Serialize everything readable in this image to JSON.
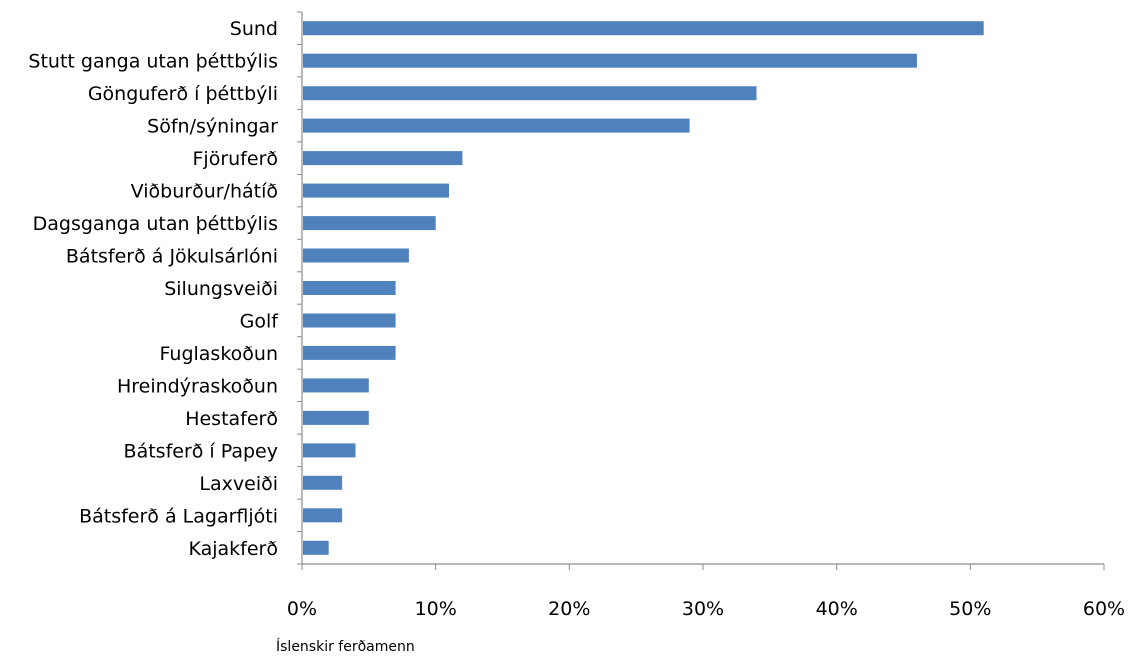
{
  "chart_data": {
    "type": "bar",
    "orientation": "horizontal",
    "categories": [
      "Sund",
      "Stutt ganga utan þéttbýlis",
      "Gönguferð í þéttbýli",
      "Söfn/sýningar",
      "Fjöruferð",
      "Viðburður/hátíð",
      "Dagsganga utan þéttbýlis",
      "Bátsferð á Jökulsárlóni",
      "Silungsveiði",
      "Golf",
      "Fuglaskoðun",
      "Hreindýraskoðun",
      "Hestaferð",
      "Bátsferð í Papey",
      "Laxveiði",
      "Bátsferð á Lagarfljóti",
      "Kajakferð"
    ],
    "series": [
      {
        "values": [
          51,
          46,
          34,
          29,
          12,
          11,
          10,
          8,
          7,
          7,
          7,
          5,
          5,
          4,
          3,
          3,
          2
        ]
      }
    ],
    "title": "",
    "xlabel": "Íslenskir ferðamenn",
    "ylabel": "",
    "xlim": [
      0,
      60
    ],
    "x_ticks": [
      0,
      10,
      20,
      30,
      40,
      50,
      60
    ],
    "x_tick_labels": [
      "0%",
      "10%",
      "20%",
      "30%",
      "40%",
      "50%",
      "60%"
    ],
    "value_unit": "%",
    "grid": false,
    "legend": "none",
    "colors": {
      "bar": "#4f81bd",
      "axis": "#8c8c8c",
      "text": "#000000"
    }
  }
}
